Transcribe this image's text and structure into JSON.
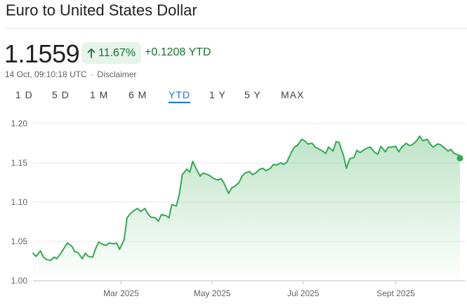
{
  "header": {
    "title": "Euro to United States Dollar"
  },
  "quote": {
    "price": "1.1559",
    "change_percent": "11.67%",
    "change_abs": "+0.1208 YTD",
    "timestamp": "14 Oct, 09:10:18 UTC",
    "separator": "·",
    "disclaimer": "Disclaimer",
    "up_icon": "arrow-up-icon",
    "accent": "#137333",
    "pill_bg": "#e6f4ea"
  },
  "ranges": {
    "items": [
      "1 D",
      "5 D",
      "1 M",
      "6 M",
      "YTD",
      "1 Y",
      "5 Y",
      "MAX"
    ],
    "active": "YTD",
    "active_color": "#1a73e8"
  },
  "chart_data": {
    "type": "area",
    "title": "",
    "xlabel": "",
    "ylabel": "",
    "ylim": [
      1.0,
      1.2
    ],
    "yticks": [
      1.0,
      1.05,
      1.1,
      1.15,
      1.2
    ],
    "ytick_labels": [
      "1.00",
      "1.05",
      "1.10",
      "1.15",
      "1.20"
    ],
    "xticks": [
      "2025-03-01",
      "2025-05-01",
      "2025-07-01",
      "2025-09-01"
    ],
    "xtick_labels": [
      "Mar 2025",
      "May 2025",
      "Jul 2025",
      "Sept 2025"
    ],
    "xlim": [
      "2025-01-01",
      "2025-10-14"
    ],
    "grid": "horizontal",
    "line_color": "#34a853",
    "series": [
      {
        "x": [
          "2025-01-01",
          "2025-01-03",
          "2025-01-06",
          "2025-01-08",
          "2025-01-10",
          "2025-01-13",
          "2025-01-15",
          "2025-01-17",
          "2025-01-20",
          "2025-01-22",
          "2025-01-24",
          "2025-01-27",
          "2025-01-29",
          "2025-01-31",
          "2025-02-03",
          "2025-02-05",
          "2025-02-07",
          "2025-02-10",
          "2025-02-12",
          "2025-02-14",
          "2025-02-17",
          "2025-02-19",
          "2025-02-21",
          "2025-02-24",
          "2025-02-26",
          "2025-02-28",
          "2025-03-03",
          "2025-03-05",
          "2025-03-07",
          "2025-03-10",
          "2025-03-12",
          "2025-03-14",
          "2025-03-17",
          "2025-03-19",
          "2025-03-21",
          "2025-03-24",
          "2025-03-26",
          "2025-03-28",
          "2025-03-31",
          "2025-04-02",
          "2025-04-04",
          "2025-04-07",
          "2025-04-09",
          "2025-04-11",
          "2025-04-14",
          "2025-04-16",
          "2025-04-18",
          "2025-04-21",
          "2025-04-23",
          "2025-04-25",
          "2025-04-28",
          "2025-04-30",
          "2025-05-02",
          "2025-05-05",
          "2025-05-07",
          "2025-05-09",
          "2025-05-12",
          "2025-05-14",
          "2025-05-16",
          "2025-05-19",
          "2025-05-21",
          "2025-05-23",
          "2025-05-26",
          "2025-05-28",
          "2025-05-30",
          "2025-06-02",
          "2025-06-04",
          "2025-06-06",
          "2025-06-09",
          "2025-06-11",
          "2025-06-13",
          "2025-06-16",
          "2025-06-18",
          "2025-06-20",
          "2025-06-23",
          "2025-06-25",
          "2025-06-27",
          "2025-06-30",
          "2025-07-02",
          "2025-07-04",
          "2025-07-07",
          "2025-07-09",
          "2025-07-11",
          "2025-07-14",
          "2025-07-16",
          "2025-07-18",
          "2025-07-21",
          "2025-07-23",
          "2025-07-25",
          "2025-07-28",
          "2025-07-30",
          "2025-08-01",
          "2025-08-04",
          "2025-08-06",
          "2025-08-08",
          "2025-08-11",
          "2025-08-13",
          "2025-08-15",
          "2025-08-18",
          "2025-08-20",
          "2025-08-22",
          "2025-08-25",
          "2025-08-27",
          "2025-08-29",
          "2025-09-01",
          "2025-09-03",
          "2025-09-05",
          "2025-09-08",
          "2025-09-10",
          "2025-09-12",
          "2025-09-15",
          "2025-09-17",
          "2025-09-19",
          "2025-09-22",
          "2025-09-24",
          "2025-09-26",
          "2025-09-29",
          "2025-10-01",
          "2025-10-03",
          "2025-10-06",
          "2025-10-08",
          "2025-10-10",
          "2025-10-13",
          "2025-10-14"
        ],
        "values": [
          1.035,
          1.031,
          1.038,
          1.03,
          1.027,
          1.026,
          1.03,
          1.028,
          1.036,
          1.042,
          1.048,
          1.044,
          1.037,
          1.036,
          1.028,
          1.035,
          1.031,
          1.03,
          1.041,
          1.049,
          1.046,
          1.045,
          1.048,
          1.047,
          1.048,
          1.04,
          1.052,
          1.08,
          1.085,
          1.09,
          1.092,
          1.088,
          1.092,
          1.085,
          1.081,
          1.08,
          1.076,
          1.084,
          1.083,
          1.08,
          1.097,
          1.095,
          1.11,
          1.135,
          1.142,
          1.138,
          1.152,
          1.14,
          1.133,
          1.137,
          1.135,
          1.133,
          1.13,
          1.128,
          1.13,
          1.124,
          1.111,
          1.118,
          1.12,
          1.125,
          1.133,
          1.137,
          1.139,
          1.135,
          1.137,
          1.142,
          1.143,
          1.14,
          1.143,
          1.148,
          1.147,
          1.15,
          1.148,
          1.151,
          1.163,
          1.17,
          1.172,
          1.18,
          1.178,
          1.174,
          1.175,
          1.17,
          1.168,
          1.165,
          1.162,
          1.17,
          1.165,
          1.177,
          1.176,
          1.159,
          1.143,
          1.155,
          1.157,
          1.166,
          1.163,
          1.167,
          1.169,
          1.17,
          1.163,
          1.161,
          1.171,
          1.164,
          1.17,
          1.17,
          1.171,
          1.164,
          1.17,
          1.175,
          1.172,
          1.173,
          1.178,
          1.184,
          1.178,
          1.18,
          1.174,
          1.17,
          1.174,
          1.173,
          1.17,
          1.165,
          1.167,
          1.162,
          1.16,
          1.1559
        ]
      }
    ]
  }
}
